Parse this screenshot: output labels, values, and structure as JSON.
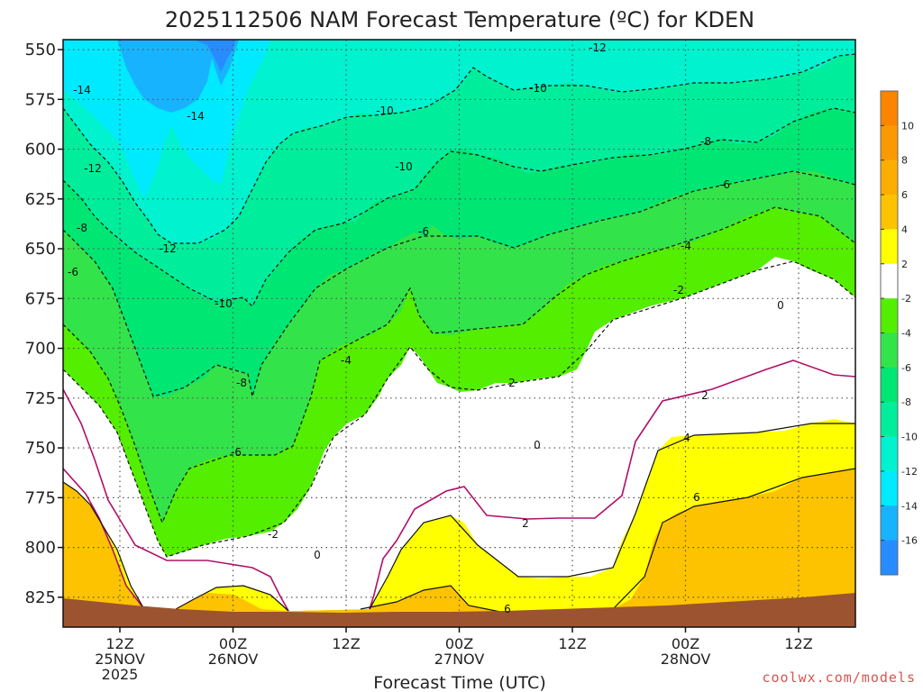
{
  "chart_data": {
    "type": "heatmap",
    "title": "2025112506 NAM Forecast Temperature (ºC) for KDEN",
    "xlabel": "Forecast Time (UTC)",
    "ylabel": "",
    "y_axis": {
      "ticks": [
        550,
        575,
        600,
        625,
        650,
        675,
        700,
        725,
        750,
        775,
        800,
        825
      ],
      "range": [
        545,
        840
      ],
      "inverted": true
    },
    "x_axis": {
      "ticks": [
        {
          "hour": "12Z",
          "date": "25NOV",
          "year": "2025"
        },
        {
          "hour": "00Z",
          "date": "26NOV",
          "year": ""
        },
        {
          "hour": "12Z",
          "date": "",
          "year": ""
        },
        {
          "hour": "00Z",
          "date": "27NOV",
          "year": ""
        },
        {
          "hour": "12Z",
          "date": "",
          "year": ""
        },
        {
          "hour": "00Z",
          "date": "28NOV",
          "year": ""
        },
        {
          "hour": "12Z",
          "date": "",
          "year": ""
        }
      ]
    },
    "grid": true,
    "colorbar": {
      "labels": [
        "10",
        "8",
        "6",
        "4",
        "2",
        "-2",
        "-4",
        "-6",
        "-8",
        "-10",
        "-12",
        "-14",
        "-16"
      ],
      "bands": [
        {
          "from": 12,
          "to": 10,
          "color": "#fb8500"
        },
        {
          "from": 10,
          "to": 8,
          "color": "#fb9a00"
        },
        {
          "from": 8,
          "to": 6,
          "color": "#fcae00"
        },
        {
          "from": 6,
          "to": 4,
          "color": "#fdc300"
        },
        {
          "from": 4,
          "to": 2,
          "color": "#ffff00"
        },
        {
          "from": 2,
          "to": -2,
          "color": "#ffffff"
        },
        {
          "from": -2,
          "to": -4,
          "color": "#53ee00"
        },
        {
          "from": -4,
          "to": -6,
          "color": "#33e34a"
        },
        {
          "from": -6,
          "to": -8,
          "color": "#00e673"
        },
        {
          "from": -8,
          "to": -10,
          "color": "#00ee9b"
        },
        {
          "from": -10,
          "to": -12,
          "color": "#00f2cf"
        },
        {
          "from": -12,
          "to": -14,
          "color": "#00eaff"
        },
        {
          "from": -14,
          "to": -16,
          "color": "#18b3ff"
        },
        {
          "from": -16,
          "to": -18,
          "color": "#268cff"
        }
      ]
    },
    "contour_labels": [
      "-12",
      "-14",
      "-14",
      "-10",
      "-12",
      "-10",
      "-8",
      "-10",
      "-6",
      "-8",
      "-12",
      "-4",
      "-6",
      "-6",
      "-10",
      "-2",
      "0",
      "-4",
      "-8",
      "2",
      "2",
      "0",
      "-6",
      "4",
      "6",
      "2",
      "-2",
      "0",
      "6"
    ]
  },
  "credit": "coolwx.com/models"
}
